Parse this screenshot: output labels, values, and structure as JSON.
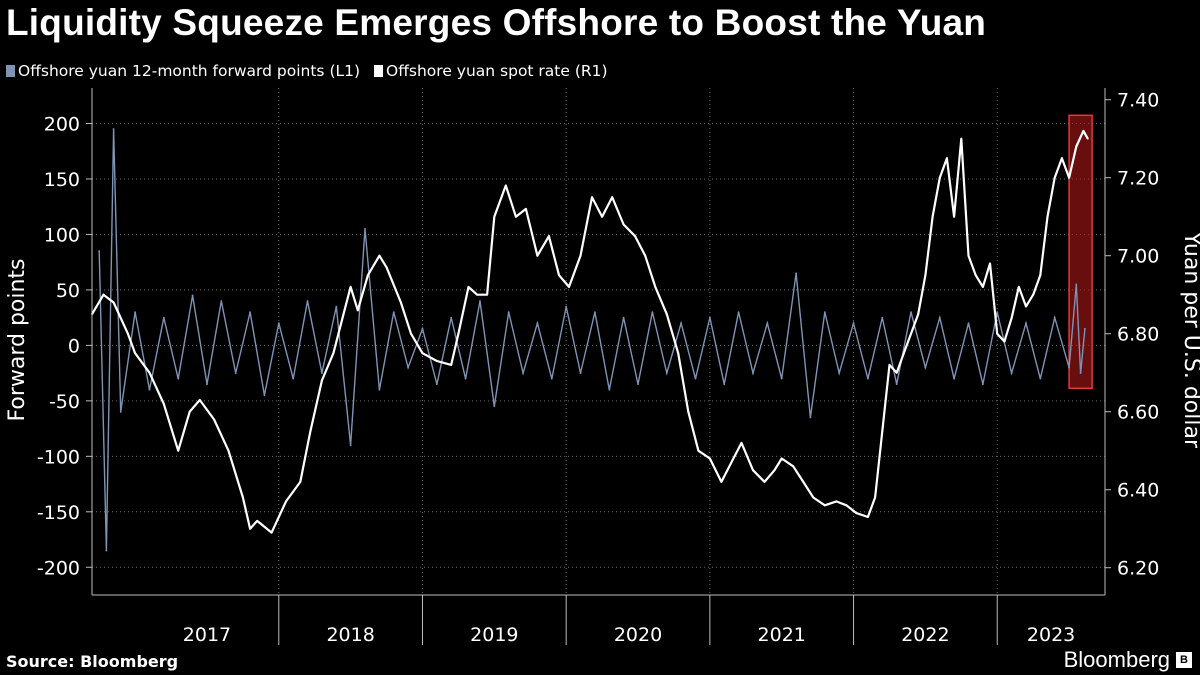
{
  "title": "Liquidity Squeeze Emerges Offshore to Boost the Yuan",
  "legend": [
    {
      "label": "Offshore yuan 12-month forward points (L1)",
      "color": "#7f93b4"
    },
    {
      "label": "Offshore yuan spot rate (R1)",
      "color": "#ffffff"
    }
  ],
  "source": "Source: Bloomberg",
  "brand": "Bloomberg",
  "chart_data": {
    "type": "line",
    "title": "Liquidity Squeeze Emerges Offshore to Boost the Yuan",
    "x_ticks": [
      "2017",
      "2018",
      "2019",
      "2020",
      "2021",
      "2022",
      "2023"
    ],
    "x_range": [
      2016.7,
      2023.75
    ],
    "left_axis": {
      "label": "Forward points",
      "ticks": [
        200,
        150,
        100,
        50,
        0,
        -50,
        -100,
        -150,
        -200
      ],
      "range": [
        -225,
        232
      ]
    },
    "right_axis": {
      "label": "Yuan per U.S. dollar",
      "ticks": [
        "7.40",
        "7.20",
        "7.00",
        "6.80",
        "6.60",
        "6.40",
        "6.20"
      ],
      "range": [
        6.13,
        7.43
      ]
    },
    "grid": true,
    "legend_position": "top-left",
    "highlight": {
      "x_range": [
        2023.5,
        2023.66
      ],
      "y_range": [
        6.66,
        7.36
      ],
      "color": "#c0191b"
    },
    "series": [
      {
        "name": "Offshore yuan spot rate (R1)",
        "axis": "right",
        "color": "#ffffff",
        "x": [
          2016.7,
          2016.78,
          2016.85,
          2016.95,
          2017.0,
          2017.1,
          2017.2,
          2017.3,
          2017.38,
          2017.45,
          2017.55,
          2017.65,
          2017.75,
          2017.8,
          2017.85,
          2017.95,
          2018.05,
          2018.15,
          2018.22,
          2018.3,
          2018.38,
          2018.45,
          2018.5,
          2018.55,
          2018.62,
          2018.7,
          2018.75,
          2018.85,
          2018.92,
          2019.0,
          2019.1,
          2019.2,
          2019.25,
          2019.32,
          2019.38,
          2019.45,
          2019.5,
          2019.58,
          2019.65,
          2019.72,
          2019.8,
          2019.88,
          2019.95,
          2020.02,
          2020.1,
          2020.18,
          2020.25,
          2020.32,
          2020.4,
          2020.48,
          2020.55,
          2020.62,
          2020.7,
          2020.78,
          2020.85,
          2020.92,
          2021.0,
          2021.08,
          2021.15,
          2021.22,
          2021.3,
          2021.38,
          2021.45,
          2021.5,
          2021.58,
          2021.65,
          2021.72,
          2021.8,
          2021.88,
          2021.95,
          2022.02,
          2022.1,
          2022.15,
          2022.2,
          2022.25,
          2022.3,
          2022.35,
          2022.4,
          2022.45,
          2022.5,
          2022.55,
          2022.6,
          2022.65,
          2022.7,
          2022.75,
          2022.8,
          2022.85,
          2022.9,
          2022.95,
          2023.0,
          2023.05,
          2023.1,
          2023.15,
          2023.2,
          2023.25,
          2023.3,
          2023.35,
          2023.4,
          2023.45,
          2023.5,
          2023.55,
          2023.6,
          2023.63
        ],
        "y": [
          6.85,
          6.9,
          6.88,
          6.8,
          6.75,
          6.7,
          6.62,
          6.5,
          6.6,
          6.63,
          6.58,
          6.5,
          6.38,
          6.3,
          6.32,
          6.29,
          6.37,
          6.42,
          6.55,
          6.68,
          6.75,
          6.85,
          6.92,
          6.86,
          6.95,
          7.0,
          6.97,
          6.88,
          6.8,
          6.75,
          6.73,
          6.72,
          6.8,
          6.92,
          6.9,
          6.9,
          7.1,
          7.18,
          7.1,
          7.12,
          7.0,
          7.05,
          6.95,
          6.92,
          7.0,
          7.15,
          7.1,
          7.15,
          7.08,
          7.05,
          7.0,
          6.92,
          6.85,
          6.75,
          6.6,
          6.5,
          6.48,
          6.42,
          6.47,
          6.52,
          6.45,
          6.42,
          6.45,
          6.48,
          6.46,
          6.42,
          6.38,
          6.36,
          6.37,
          6.36,
          6.34,
          6.33,
          6.38,
          6.55,
          6.72,
          6.7,
          6.75,
          6.8,
          6.85,
          6.95,
          7.1,
          7.2,
          7.25,
          7.1,
          7.3,
          7.0,
          6.95,
          6.92,
          6.98,
          6.8,
          6.78,
          6.84,
          6.92,
          6.87,
          6.9,
          6.95,
          7.1,
          7.2,
          7.25,
          7.2,
          7.28,
          7.32,
          7.3
        ]
      },
      {
        "name": "Offshore yuan 12-month forward points (L1)",
        "axis": "left",
        "color": "#7f93b4",
        "x": [
          2016.75,
          2016.8,
          2016.85,
          2016.9,
          2017.0,
          2017.1,
          2017.2,
          2017.3,
          2017.4,
          2017.5,
          2017.6,
          2017.7,
          2017.8,
          2017.9,
          2018.0,
          2018.1,
          2018.2,
          2018.3,
          2018.4,
          2018.5,
          2018.6,
          2018.7,
          2018.8,
          2018.9,
          2019.0,
          2019.1,
          2019.2,
          2019.3,
          2019.4,
          2019.5,
          2019.6,
          2019.7,
          2019.8,
          2019.9,
          2020.0,
          2020.1,
          2020.2,
          2020.3,
          2020.4,
          2020.5,
          2020.6,
          2020.7,
          2020.8,
          2020.9,
          2021.0,
          2021.1,
          2021.2,
          2021.3,
          2021.4,
          2021.5,
          2021.6,
          2021.7,
          2021.8,
          2021.9,
          2022.0,
          2022.1,
          2022.2,
          2022.3,
          2022.4,
          2022.5,
          2022.6,
          2022.7,
          2022.8,
          2022.9,
          2023.0,
          2023.1,
          2023.2,
          2023.3,
          2023.4,
          2023.5,
          2023.55,
          2023.58,
          2023.61
        ],
        "y": [
          85,
          -185,
          195,
          -60,
          30,
          -40,
          25,
          -30,
          45,
          -35,
          40,
          -25,
          30,
          -45,
          20,
          -30,
          40,
          -25,
          35,
          -90,
          105,
          -40,
          30,
          -20,
          15,
          -35,
          25,
          -30,
          40,
          -55,
          30,
          -25,
          20,
          -30,
          35,
          -25,
          30,
          -40,
          25,
          -35,
          30,
          -25,
          20,
          -30,
          25,
          -35,
          30,
          -25,
          20,
          -30,
          65,
          -65,
          30,
          -25,
          20,
          -30,
          25,
          -35,
          30,
          -20,
          25,
          -30,
          20,
          -35,
          30,
          -25,
          20,
          -30,
          25,
          -20,
          55,
          -25,
          15
        ]
      }
    ]
  }
}
